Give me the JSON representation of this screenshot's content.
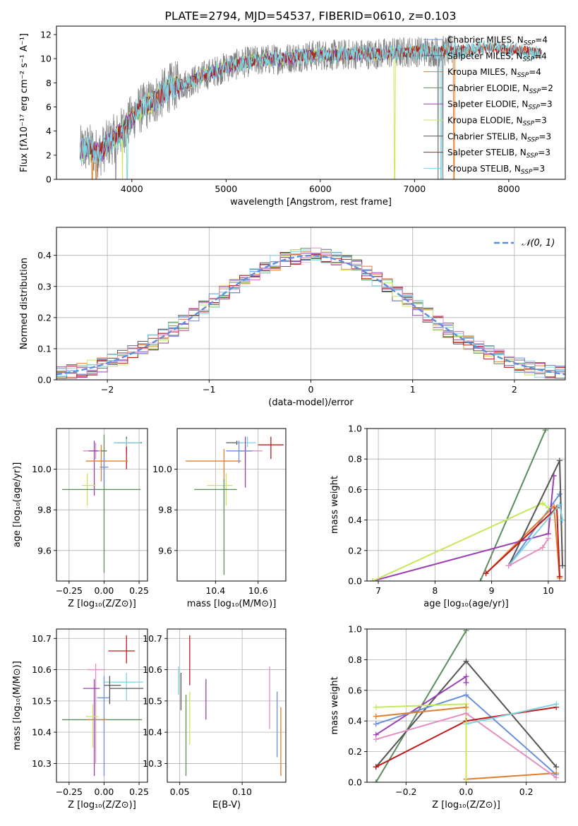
{
  "figure_title": "PLATE=2794, MJD=54537, FIBERID=0610, z=0.103",
  "colors": {
    "chabrier_miles": "#6a8fdb",
    "salpeter_miles": "#5a6a9a",
    "kroupa_miles": "#e07f2e",
    "chabrier_elodie": "#5c8c5c",
    "salpeter_elodie": "#9b3fb5",
    "kroupa_elodie": "#c7e85a",
    "chabrier_stelib": "#555555",
    "salpeter_stelib": "#c01a1a",
    "kroupa_stelib": "#7fd4e0",
    "pink": "#e48fc4",
    "gaussian": "#5b8fdc"
  },
  "chart_data": [
    {
      "id": "spectrum",
      "type": "line",
      "xlabel": "wavelength [Angstrom, rest frame]",
      "ylabel": "Flux [fλ10⁻¹⁷ erg cm⁻² s⁻¹ A⁻¹]",
      "xlim": [
        3200,
        8600
      ],
      "ylim": [
        0,
        12.7
      ],
      "xticks": [
        "4000",
        "5000",
        "6000",
        "7000",
        "8000"
      ],
      "yticks": [
        "0",
        "2",
        "4",
        "6",
        "8",
        "10",
        "12"
      ],
      "legend_position": "top-right",
      "legend": [
        "Chabrier MILES, N_SSP=4",
        "Salpeter MILES, N_SSP=4",
        "Kroupa MILES, N_SSP=4",
        "Chabrier ELODIE, N_SSP=2",
        "Salpeter ELODIE, N_SSP=3",
        "Kroupa ELODIE, N_SSP=3",
        "Chabrier STELIB, N_SSP=3",
        "Salpeter STELIB, N_SSP=3",
        "Kroupa STELIB, N_SSP=3"
      ],
      "continuum": {
        "x": [
          3450,
          3550,
          3650,
          3750,
          3850,
          3950,
          4050,
          4150,
          4250,
          4400,
          4600,
          4800,
          5000,
          5200,
          5400,
          5600,
          5800,
          6000,
          6200,
          6400,
          6600,
          6800,
          7000,
          7200,
          7500,
          7800,
          8100,
          8350
        ],
        "y": [
          2.4,
          2.6,
          2.1,
          3.0,
          3.6,
          4.5,
          5.6,
          6.1,
          6.6,
          7.6,
          8.0,
          8.7,
          9.3,
          9.7,
          9.9,
          10.0,
          10.2,
          10.3,
          10.3,
          10.4,
          10.4,
          10.5,
          10.6,
          10.6,
          10.7,
          10.9,
          10.7,
          10.4
        ]
      }
    },
    {
      "id": "residuals",
      "type": "histogram",
      "xlabel": "(data-model)/error",
      "ylabel": "Normed distribution",
      "xlim": [
        -2.5,
        2.5
      ],
      "ylim": [
        0,
        0.49
      ],
      "xticks": [
        "−2",
        "−1",
        "0",
        "1",
        "2"
      ],
      "yticks": [
        "0.0",
        "0.1",
        "0.2",
        "0.3",
        "0.4"
      ],
      "legend_position": "top-right",
      "legend": [
        "𝒩(0, 1)"
      ],
      "grid": true
    },
    {
      "id": "age_vs_Z",
      "type": "errorbar",
      "xlabel": "Z [log₁₀(Z/Z⊙)]",
      "ylabel": "age  [log₁₀(age/yr)]",
      "xlim": [
        -0.34,
        0.31
      ],
      "ylim": [
        9.45,
        10.2
      ],
      "xticks": [
        "−0.25",
        "0.00",
        "0.25"
      ],
      "yticks": [
        "9.6",
        "9.8",
        "10.0"
      ],
      "grid": true,
      "points": [
        {
          "x": 0.16,
          "y": 10.13,
          "xerr": [
            0.09,
            0.11
          ],
          "yerr": [
            0.05,
            0.03
          ],
          "color": "chabrier_stelib"
        },
        {
          "x": 0.16,
          "y": 10.13,
          "xerr": [
            0.06,
            0.06
          ],
          "yerr": [
            0.13,
            0.01
          ],
          "color": "salpeter_stelib"
        },
        {
          "x": 0.16,
          "y": 10.13,
          "xerr": [
            0.09,
            0.1
          ],
          "yerr": [
            0.02,
            0.02
          ],
          "color": "kroupa_stelib"
        },
        {
          "x": -0.06,
          "y": 10.09,
          "xerr": [
            0.09,
            0.08
          ],
          "yerr": [
            0.04,
            0.04
          ],
          "color": "pink"
        },
        {
          "x": -0.07,
          "y": 10.09,
          "xerr": [
            0.04,
            0.03
          ],
          "yerr": [
            0.22,
            0.05
          ],
          "color": "salpeter_elodie"
        },
        {
          "x": -0.02,
          "y": 10.04,
          "xerr": [
            0.11,
            0.19
          ],
          "yerr": [
            0.1,
            0.08
          ],
          "color": "kroupa_miles"
        },
        {
          "x": 0.0,
          "y": 10.09,
          "xerr": [
            0.02,
            0.02
          ],
          "yerr": [
            0.6,
            0.08
          ],
          "color": "chabrier_elodie"
        },
        {
          "x": -0.12,
          "y": 9.92,
          "xerr": [
            0.04,
            0.06
          ],
          "yerr": [
            0.1,
            0.06
          ],
          "color": "kroupa_elodie"
        },
        {
          "x": 0.0,
          "y": 9.9,
          "xerr": [
            0.3,
            0.26
          ],
          "yerr": [
            0.0,
            0.0
          ],
          "color": "chabrier_elodie"
        },
        {
          "x": 0.0,
          "y": 10.01,
          "xerr": [
            0.03,
            0.03
          ],
          "yerr": [
            0.08,
            0.05
          ],
          "color": "chabrier_miles"
        }
      ]
    },
    {
      "id": "age_vs_mass",
      "type": "errorbar",
      "xlabel": "mass [log₁₀(M/M⊙)]",
      "ylabel": "",
      "xlim": [
        10.22,
        10.73
      ],
      "ylim": [
        9.45,
        10.2
      ],
      "xticks": [
        "10.4",
        "10.6"
      ],
      "yticks": [
        "9.6",
        "9.8",
        "10.0"
      ],
      "grid": true,
      "points": [
        {
          "x": 10.5,
          "y": 10.13,
          "xerr": [
            0.05,
            0.03
          ],
          "yerr": [
            0.01,
            0.01
          ],
          "color": "chabrier_stelib"
        },
        {
          "x": 10.66,
          "y": 10.12,
          "xerr": [
            0.06,
            0.06
          ],
          "yerr": [
            0.07,
            0.04
          ],
          "color": "salpeter_stelib"
        },
        {
          "x": 10.55,
          "y": 10.13,
          "xerr": [
            0.05,
            0.04
          ],
          "yerr": [
            0.02,
            0.03
          ],
          "color": "kroupa_stelib"
        },
        {
          "x": 10.54,
          "y": 10.09,
          "xerr": [
            0.06,
            0.08
          ],
          "yerr": [
            0.07,
            0.03
          ],
          "color": "pink"
        },
        {
          "x": 10.54,
          "y": 10.09,
          "xerr": [
            0.03,
            0.03
          ],
          "yerr": [
            0.18,
            0.07
          ],
          "color": "salpeter_elodie"
        },
        {
          "x": 10.44,
          "y": 10.04,
          "xerr": [
            0.18,
            0.08
          ],
          "yerr": [
            0.1,
            0.06
          ],
          "color": "kroupa_miles"
        },
        {
          "x": 10.51,
          "y": 10.09,
          "xerr": [
            0.06,
            0.06
          ],
          "yerr": [
            0.06,
            0.05
          ],
          "color": "chabrier_miles"
        },
        {
          "x": 10.45,
          "y": 9.92,
          "xerr": [
            0.09,
            0.03
          ],
          "yerr": [
            0.1,
            0.06
          ],
          "color": "kroupa_elodie"
        },
        {
          "x": 10.44,
          "y": 9.9,
          "xerr": [
            0.14,
            0.06
          ],
          "yerr": [
            0.42,
            0.05
          ],
          "color": "chabrier_elodie"
        }
      ]
    },
    {
      "id": "weight_vs_age",
      "type": "line",
      "xlabel": "age  [log₁₀(age/yr)]",
      "ylabel": "mass weight",
      "xlim": [
        6.8,
        10.3
      ],
      "ylim": [
        0,
        1
      ],
      "xticks": [
        "7",
        "8",
        "9",
        "10"
      ],
      "yticks": [
        "0.0",
        "0.2",
        "0.4",
        "0.6",
        "0.8",
        "1.0"
      ],
      "grid": true,
      "series": [
        {
          "color": "chabrier_miles",
          "x": [
            9.3,
            10.2
          ],
          "y": [
            0.1,
            0.57
          ]
        },
        {
          "color": "kroupa_miles",
          "x": [
            8.9,
            10.1,
            10.2
          ],
          "y": [
            0.05,
            0.49,
            0.02
          ]
        },
        {
          "color": "chabrier_elodie",
          "x": [
            8.8,
            9.95
          ],
          "y": [
            0.0,
            0.99
          ]
        },
        {
          "color": "salpeter_elodie",
          "x": [
            6.9,
            10.0,
            10.1
          ],
          "y": [
            0.0,
            0.31,
            0.69
          ]
        },
        {
          "color": "kroupa_elodie",
          "x": [
            6.9,
            9.9,
            10.0
          ],
          "y": [
            0.0,
            0.51,
            0.48
          ]
        },
        {
          "color": "chabrier_stelib",
          "x": [
            9.3,
            10.2,
            10.25
          ],
          "y": [
            0.1,
            0.79,
            0.1
          ]
        },
        {
          "color": "salpeter_stelib",
          "x": [
            8.9,
            10.15,
            10.2
          ],
          "y": [
            0.05,
            0.48,
            0.03
          ]
        },
        {
          "color": "kroupa_stelib",
          "x": [
            9.3,
            10.2,
            10.25
          ],
          "y": [
            0.1,
            0.5,
            0.4
          ]
        },
        {
          "color": "pink",
          "x": [
            9.3,
            9.9,
            10.0
          ],
          "y": [
            0.1,
            0.22,
            0.28
          ]
        }
      ]
    },
    {
      "id": "mass_vs_Z",
      "type": "errorbar",
      "xlabel": "Z [log₁₀(Z/Z⊙)]",
      "ylabel": "mass [log₁₀(M/M⊙)]",
      "xlim": [
        -0.34,
        0.31
      ],
      "ylim": [
        10.24,
        10.73
      ],
      "xticks": [
        "−0.25",
        "0.00",
        "0.25"
      ],
      "yticks": [
        "10.3",
        "10.4",
        "10.5",
        "10.6",
        "10.7"
      ],
      "grid": true,
      "points": [
        {
          "x": 0.16,
          "y": 10.66,
          "xerr": [
            0.13,
            0.06
          ],
          "yerr": [
            0.04,
            0.05
          ],
          "color": "salpeter_stelib"
        },
        {
          "x": 0.16,
          "y": 10.56,
          "xerr": [
            0.16,
            0.12
          ],
          "yerr": [
            0.06,
            0.03
          ],
          "color": "kroupa_stelib"
        },
        {
          "x": 0.16,
          "y": 10.54,
          "xerr": [
            0.12,
            0.12
          ],
          "yerr": [
            0.0,
            0.0
          ],
          "color": "chabrier_stelib"
        },
        {
          "x": 0.04,
          "y": 10.55,
          "xerr": [
            0.04,
            0.08
          ],
          "yerr": [
            0.06,
            0.03
          ],
          "color": "chabrier_stelib"
        },
        {
          "x": -0.06,
          "y": 10.6,
          "xerr": [
            0.06,
            0.07
          ],
          "yerr": [
            0.3,
            0.02
          ],
          "color": "pink"
        },
        {
          "x": -0.07,
          "y": 10.54,
          "xerr": [
            0.08,
            0.04
          ],
          "yerr": [
            0.28,
            0.03
          ],
          "color": "salpeter_elodie"
        },
        {
          "x": 0.0,
          "y": 10.51,
          "xerr": [
            0.05,
            0.04
          ],
          "yerr": [
            0.25,
            0.07
          ],
          "color": "chabrier_miles"
        },
        {
          "x": -0.08,
          "y": 10.45,
          "xerr": [
            0.05,
            0.04
          ],
          "yerr": [
            0.1,
            0.04
          ],
          "color": "kroupa_elodie"
        },
        {
          "x": 0.0,
          "y": 10.44,
          "xerr": [
            0.3,
            0.27
          ],
          "yerr": [
            0.0,
            0.0
          ],
          "color": "chabrier_elodie"
        },
        {
          "x": -0.05,
          "y": 10.44,
          "xerr": [
            0.07,
            0.07
          ],
          "yerr": [
            0.0,
            0.0
          ],
          "color": "kroupa_miles"
        }
      ]
    },
    {
      "id": "mass_vs_EBV",
      "type": "errorbar",
      "xlabel": "E(B-V)",
      "ylabel": "",
      "xlim": [
        0.04,
        0.135
      ],
      "ylim": [
        10.24,
        10.73
      ],
      "xticks": [
        "0.05",
        "0.10"
      ],
      "yticks": [
        "10.3",
        "10.4",
        "10.5",
        "10.6",
        "10.7"
      ],
      "grid": true,
      "points": [
        {
          "x": 0.058,
          "y": 10.63,
          "xerr": [
            0,
            0
          ],
          "yerr": [
            0.08,
            0.08
          ],
          "color": "salpeter_stelib"
        },
        {
          "x": 0.049,
          "y": 10.56,
          "xerr": [
            0,
            0
          ],
          "yerr": [
            0.04,
            0.05
          ],
          "color": "kroupa_stelib"
        },
        {
          "x": 0.051,
          "y": 10.55,
          "xerr": [
            0,
            0
          ],
          "yerr": [
            0.08,
            0.04
          ],
          "color": "chabrier_stelib"
        },
        {
          "x": 0.055,
          "y": 10.4,
          "xerr": [
            0,
            0
          ],
          "yerr": [
            0.14,
            0.12
          ],
          "color": "chabrier_elodie"
        },
        {
          "x": 0.058,
          "y": 10.44,
          "xerr": [
            0,
            0
          ],
          "yerr": [
            0.08,
            0.09
          ],
          "color": "kroupa_elodie"
        },
        {
          "x": 0.071,
          "y": 10.5,
          "xerr": [
            0,
            0
          ],
          "yerr": [
            0.06,
            0.07
          ],
          "color": "salpeter_elodie"
        },
        {
          "x": 0.122,
          "y": 10.51,
          "xerr": [
            0,
            0
          ],
          "yerr": [
            0.1,
            0.1
          ],
          "color": "pink"
        },
        {
          "x": 0.128,
          "y": 10.42,
          "xerr": [
            0,
            0
          ],
          "yerr": [
            0.1,
            0.11
          ],
          "color": "chabrier_miles"
        },
        {
          "x": 0.131,
          "y": 10.37,
          "xerr": [
            0,
            0
          ],
          "yerr": [
            0.11,
            0.11
          ],
          "color": "kroupa_miles"
        }
      ]
    },
    {
      "id": "weight_vs_Z",
      "type": "line",
      "xlabel": "Z [log₁₀(Z/Z⊙)]",
      "ylabel": "mass weight",
      "xlim": [
        -0.33,
        0.33
      ],
      "ylim": [
        0,
        1
      ],
      "xticks": [
        "−0.2",
        "0.0",
        "0.2"
      ],
      "yticks": [
        "0.0",
        "0.2",
        "0.4",
        "0.6",
        "0.8",
        "1.0"
      ],
      "grid": true,
      "series": [
        {
          "color": "chabrier_elodie",
          "x": [
            -0.3,
            0.0
          ],
          "y": [
            0.0,
            0.99
          ]
        },
        {
          "color": "chabrier_stelib",
          "x": [
            -0.3,
            0.0,
            0.3
          ],
          "y": [
            0.1,
            0.79,
            0.1
          ]
        },
        {
          "color": "salpeter_elodie",
          "x": [
            -0.3,
            0.0,
            0.0
          ],
          "y": [
            0.31,
            0.69,
            0.65
          ]
        },
        {
          "color": "chabrier_miles",
          "x": [
            -0.3,
            0.0,
            0.3
          ],
          "y": [
            0.38,
            0.57,
            0.05
          ]
        },
        {
          "color": "kroupa_elodie",
          "x": [
            -0.3,
            0.0,
            0.0
          ],
          "y": [
            0.49,
            0.51,
            0.0
          ]
        },
        {
          "color": "kroupa_miles",
          "x": [
            -0.3,
            0.0
          ],
          "y": [
            0.43,
            0.49
          ]
        },
        {
          "color": "kroupa_miles",
          "x": [
            0.0,
            0.3
          ],
          "y": [
            0.02,
            0.06
          ]
        },
        {
          "color": "pink",
          "x": [
            -0.3,
            0.0,
            0.3
          ],
          "y": [
            0.28,
            0.45,
            0.03
          ]
        },
        {
          "color": "salpeter_stelib",
          "x": [
            -0.3,
            0.0,
            0.3
          ],
          "y": [
            0.1,
            0.4,
            0.49
          ]
        },
        {
          "color": "kroupa_stelib",
          "x": [
            0.0,
            0.3
          ],
          "y": [
            0.38,
            0.51
          ]
        },
        {
          "color": "kroupa_elodie",
          "x": [
            0.0,
            0.0
          ],
          "y": [
            0.39,
            0.0
          ]
        }
      ]
    }
  ]
}
